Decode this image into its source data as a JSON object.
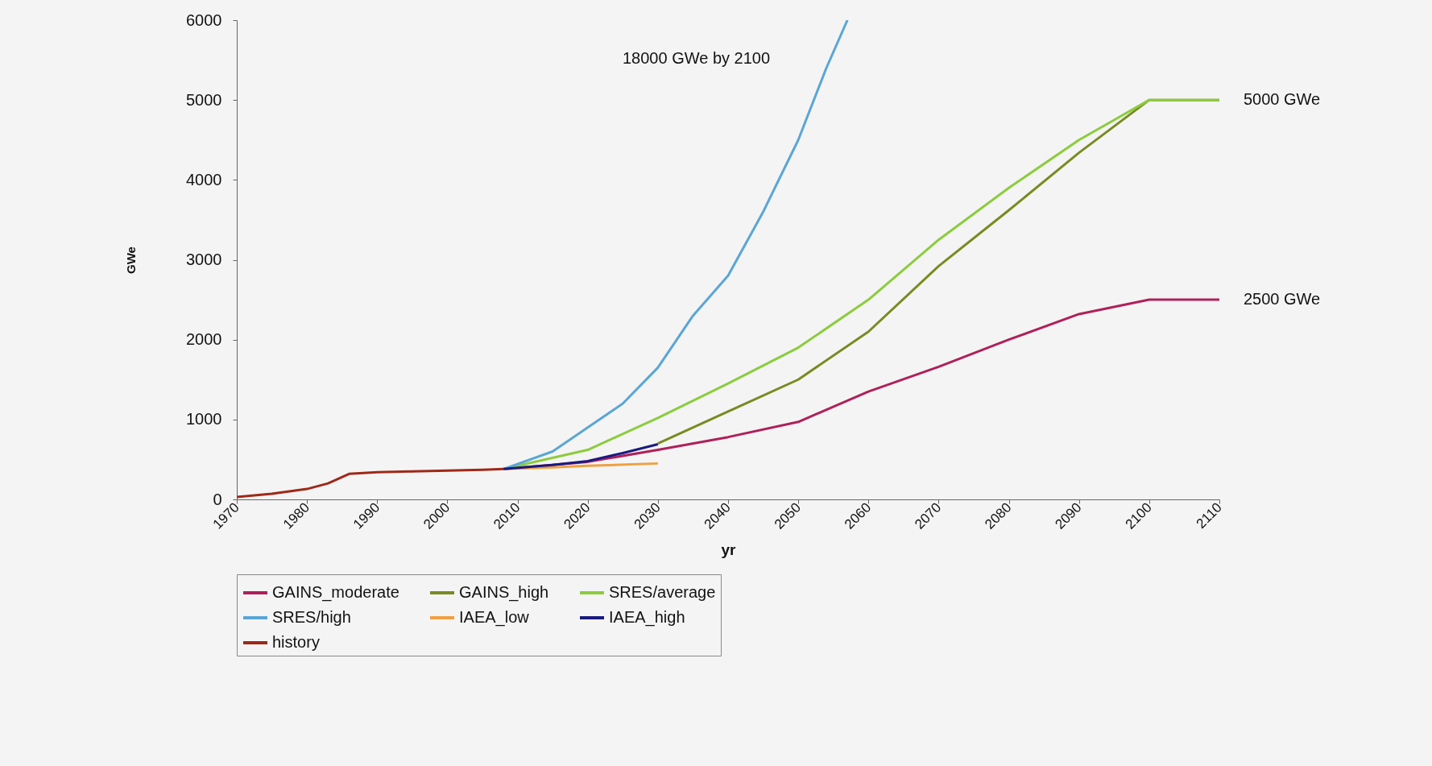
{
  "chart_data": {
    "type": "line",
    "xlabel": "yr",
    "ylabel": "GWe",
    "xlim": [
      1970,
      2110
    ],
    "xticks": [
      1970,
      1980,
      1990,
      2000,
      2010,
      2020,
      2030,
      2040,
      2050,
      2060,
      2070,
      2080,
      2090,
      2100,
      2110
    ],
    "ylim": [
      0,
      6000
    ],
    "yticks": [
      0,
      1000,
      2000,
      3000,
      4000,
      5000,
      6000
    ],
    "grid": false,
    "legend": "bottom",
    "series": [
      {
        "name": "GAINS_moderate",
        "color": "#b0205a",
        "x": [
          2008,
          2020,
          2030,
          2040,
          2050,
          2060,
          2070,
          2080,
          2090,
          2100,
          2110
        ],
        "values": [
          380,
          470,
          620,
          780,
          970,
          1350,
          1660,
          2000,
          2320,
          2500,
          2500
        ]
      },
      {
        "name": "GAINS_high",
        "color": "#7a8a20",
        "x": [
          2030,
          2040,
          2050,
          2060,
          2070,
          2080,
          2090,
          2100,
          2110
        ],
        "values": [
          700,
          1100,
          1500,
          2100,
          2920,
          3620,
          4340,
          5000,
          5000
        ]
      },
      {
        "name": "SRES/average",
        "color": "#8ccc3c",
        "x": [
          2008,
          2020,
          2030,
          2040,
          2050,
          2060,
          2070,
          2080,
          2090,
          2095,
          2100,
          2110
        ],
        "values": [
          380,
          620,
          1020,
          1450,
          1900,
          2500,
          3250,
          3900,
          4500,
          4750,
          5000,
          5000
        ]
      },
      {
        "name": "SRES/high",
        "color": "#5aa6d6",
        "x": [
          2008,
          2015,
          2020,
          2025,
          2030,
          2035,
          2040,
          2045,
          2050,
          2054,
          2057
        ],
        "values": [
          380,
          600,
          900,
          1200,
          1650,
          2300,
          2800,
          3600,
          4500,
          5400,
          6000
        ]
      },
      {
        "name": "IAEA_low",
        "color": "#f0a040",
        "x": [
          2008,
          2015,
          2020,
          2030
        ],
        "values": [
          380,
          400,
          420,
          450
        ]
      },
      {
        "name": "IAEA_high",
        "color": "#1a1a80",
        "x": [
          2008,
          2015,
          2020,
          2025,
          2030
        ],
        "values": [
          380,
          430,
          480,
          580,
          690
        ]
      },
      {
        "name": "history",
        "color": "#a02818",
        "x": [
          1970,
          1975,
          1980,
          1983,
          1986,
          1990,
          1995,
          2000,
          2005,
          2008
        ],
        "values": [
          30,
          70,
          130,
          200,
          320,
          340,
          350,
          360,
          370,
          380
        ]
      }
    ],
    "annotations": [
      "18000 GWe by 2100",
      {
        "text": "5000 GWe",
        "x": 2110,
        "y": 5000
      },
      {
        "text": "2500 GWe",
        "x": 2110,
        "y": 2500
      }
    ]
  }
}
